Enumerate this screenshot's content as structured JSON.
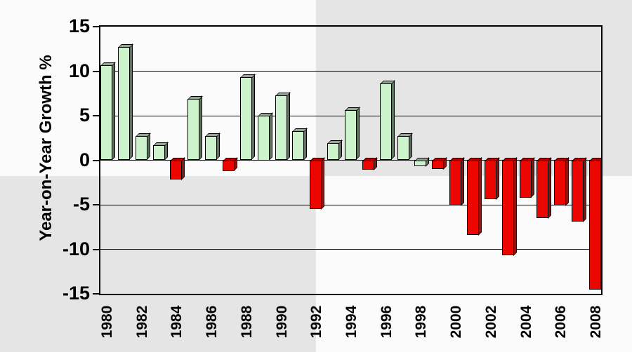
{
  "background": {
    "checker_light": "#fbfbfb",
    "checker_dark": "#e5e5e5"
  },
  "chart_data": {
    "type": "bar",
    "title": "",
    "xlabel": "",
    "ylabel": "Year-on-Year Growth %",
    "ylim": [
      -15,
      15
    ],
    "yticks": [
      15,
      10,
      5,
      0,
      -5,
      -10,
      -15
    ],
    "ytick_labels": [
      "15",
      "10",
      "5",
      "0",
      "-5",
      "-10",
      "-15"
    ],
    "gridlines_at": [
      10,
      5,
      0,
      -5,
      -10
    ],
    "grid": "horizontal",
    "legend": "none",
    "xtick_labels": [
      "1980",
      "1982",
      "1984",
      "1986",
      "1988",
      "1990",
      "1992",
      "1994",
      "1996",
      "1998",
      "2000",
      "2002",
      "2004",
      "2006",
      "2008"
    ],
    "categories": [
      1980,
      1981,
      1982,
      1983,
      1984,
      1985,
      1986,
      1987,
      1988,
      1989,
      1990,
      1991,
      1992,
      1993,
      1994,
      1995,
      1996,
      1997,
      1998,
      1999,
      2000,
      2001,
      2002,
      2003,
      2004,
      2005,
      2006,
      2007,
      2008
    ],
    "values": [
      10.7,
      12.7,
      2.7,
      1.7,
      -2.2,
      6.9,
      2.7,
      -1.2,
      9.3,
      5.0,
      7.3,
      3.3,
      -5.5,
      1.9,
      5.6,
      -1.1,
      8.6,
      2.7,
      -0.7,
      -1.0,
      -5.1,
      -8.4,
      -4.4,
      -10.7,
      -4.2,
      -6.5,
      -5.1,
      -6.9,
      -14.5
    ],
    "bar_color_names": [
      "green",
      "green",
      "green",
      "green",
      "red",
      "green",
      "green",
      "red",
      "green",
      "green",
      "green",
      "green",
      "red",
      "green",
      "green",
      "red",
      "green",
      "green",
      "green",
      "red",
      "red",
      "red",
      "red",
      "red",
      "red",
      "red",
      "red",
      "red",
      "red"
    ],
    "colors": {
      "green_front": "#cdf3cd",
      "green_side": "#5f705f",
      "green_top": "#95a295",
      "red_front": "#ec0600",
      "red_side": "#8c1414",
      "red_top": "#b40000",
      "outline": "#000000",
      "axis": "#000000",
      "text": "#000000"
    }
  }
}
